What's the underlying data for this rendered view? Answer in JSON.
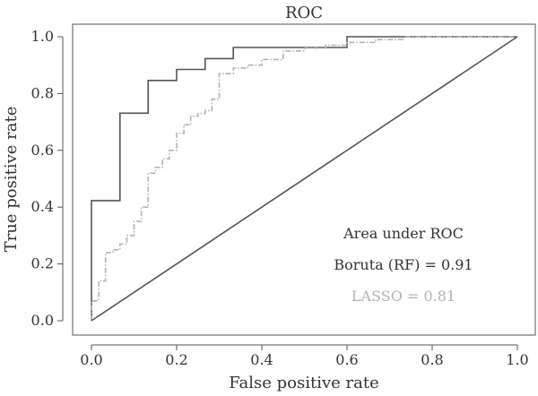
{
  "chart_data": {
    "type": "line",
    "title": "ROC",
    "xlabel": "False positive rate",
    "ylabel": "True positive rate",
    "xlim": [
      0,
      1
    ],
    "ylim": [
      0,
      1
    ],
    "xticks": [
      "0.0",
      "0.2",
      "0.4",
      "0.6",
      "0.8",
      "1.0"
    ],
    "yticks": [
      "0.0",
      "0.2",
      "0.4",
      "0.6",
      "0.8",
      "1.0"
    ],
    "grid": false,
    "legend": {
      "title": "Area under ROC",
      "placement": "bottom-right",
      "entries": [
        "Boruta (RF) = 0.91",
        "LASSO = 0.81"
      ]
    },
    "series": [
      {
        "color": "#555555",
        "style": "solid",
        "x": [
          0,
          0,
          0.067,
          0.067,
          0.133,
          0.133,
          0.2,
          0.2,
          0.267,
          0.267,
          0.333,
          0.333,
          0.6,
          0.6,
          0.8,
          1.0
        ],
        "y": [
          0,
          0.423,
          0.423,
          0.731,
          0.731,
          0.846,
          0.846,
          0.885,
          0.885,
          0.923,
          0.923,
          0.962,
          0.962,
          1.0,
          1.0,
          1.0
        ]
      },
      {
        "color": "#b3b3b3",
        "style": "dash-dot",
        "x": [
          0,
          0,
          0.017,
          0.017,
          0.033,
          0.033,
          0.05,
          0.05,
          0.067,
          0.067,
          0.083,
          0.083,
          0.1,
          0.1,
          0.117,
          0.117,
          0.133,
          0.133,
          0.15,
          0.15,
          0.167,
          0.167,
          0.183,
          0.183,
          0.2,
          0.2,
          0.217,
          0.217,
          0.233,
          0.233,
          0.25,
          0.25,
          0.267,
          0.267,
          0.283,
          0.283,
          0.3,
          0.3,
          0.333,
          0.333,
          0.367,
          0.367,
          0.4,
          0.4,
          0.45,
          0.45,
          0.5,
          0.5,
          0.55,
          0.55,
          0.6,
          0.6,
          0.667,
          0.667,
          0.733,
          0.733,
          0.8,
          1.0
        ],
        "y": [
          0,
          0.07,
          0.07,
          0.14,
          0.14,
          0.24,
          0.24,
          0.25,
          0.25,
          0.27,
          0.27,
          0.3,
          0.3,
          0.35,
          0.35,
          0.4,
          0.4,
          0.52,
          0.52,
          0.54,
          0.54,
          0.57,
          0.57,
          0.6,
          0.6,
          0.66,
          0.66,
          0.69,
          0.69,
          0.72,
          0.72,
          0.73,
          0.73,
          0.74,
          0.74,
          0.78,
          0.78,
          0.87,
          0.87,
          0.89,
          0.89,
          0.9,
          0.9,
          0.92,
          0.92,
          0.95,
          0.95,
          0.96,
          0.96,
          0.97,
          0.97,
          0.98,
          0.98,
          0.99,
          0.99,
          1.0,
          1.0,
          1.0
        ]
      },
      {
        "color": "#555555",
        "style": "solid",
        "x": [
          0,
          1
        ],
        "y": [
          0,
          1
        ]
      }
    ]
  }
}
